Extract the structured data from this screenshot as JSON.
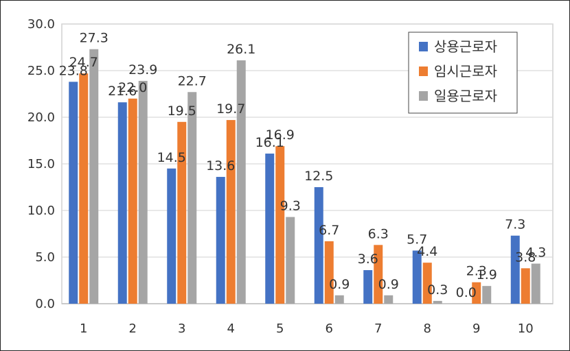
{
  "chart_data": {
    "type": "bar",
    "categories": [
      "1",
      "2",
      "3",
      "4",
      "5",
      "6",
      "7",
      "8",
      "9",
      "10"
    ],
    "series": [
      {
        "name": "상용근로자",
        "color": "#4472C4",
        "values": [
          23.8,
          21.6,
          14.5,
          13.6,
          16.1,
          12.5,
          3.6,
          5.7,
          0.0,
          7.3
        ]
      },
      {
        "name": "임시근로자",
        "color": "#ED7D31",
        "values": [
          24.7,
          22.0,
          19.5,
          19.7,
          16.9,
          6.7,
          6.3,
          4.4,
          2.3,
          3.8
        ]
      },
      {
        "name": "일용근로자",
        "color": "#A5A5A5",
        "values": [
          27.3,
          23.9,
          22.7,
          26.1,
          9.3,
          0.9,
          0.9,
          0.3,
          1.9,
          4.3
        ]
      }
    ],
    "yticks": [
      "0.0",
      "5.0",
      "10.0",
      "15.0",
      "20.0",
      "25.0",
      "30.0"
    ],
    "ylim": [
      0,
      30
    ],
    "grid": true,
    "legend": "top-right",
    "title": "",
    "xlabel": "",
    "ylabel": ""
  }
}
